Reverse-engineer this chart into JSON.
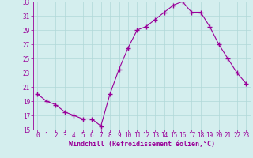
{
  "x": [
    0,
    1,
    2,
    3,
    4,
    5,
    6,
    7,
    8,
    9,
    10,
    11,
    12,
    13,
    14,
    15,
    16,
    17,
    18,
    19,
    20,
    21,
    22,
    23
  ],
  "y": [
    20.0,
    19.0,
    18.5,
    17.5,
    17.0,
    16.5,
    16.5,
    15.5,
    20.0,
    23.5,
    26.5,
    29.0,
    29.5,
    30.5,
    31.5,
    32.5,
    33.0,
    31.5,
    31.5,
    29.5,
    27.0,
    25.0,
    23.0,
    21.5
  ],
  "line_color": "#990099",
  "marker": "+",
  "marker_size": 4,
  "xlabel": "Windchill (Refroidissement éolien,°C)",
  "xlabel_color": "#990099",
  "background_color": "#d4eeee",
  "grid_color": "#b0d8d8",
  "tick_color": "#990099",
  "ylim": [
    15,
    33
  ],
  "xlim": [
    -0.5,
    23.5
  ],
  "yticks": [
    15,
    17,
    19,
    21,
    23,
    25,
    27,
    29,
    31,
    33
  ],
  "xticks": [
    0,
    1,
    2,
    3,
    4,
    5,
    6,
    7,
    8,
    9,
    10,
    11,
    12,
    13,
    14,
    15,
    16,
    17,
    18,
    19,
    20,
    21,
    22,
    23
  ],
  "label_fontsize": 6.0,
  "tick_fontsize": 5.5,
  "linewidth": 0.8
}
